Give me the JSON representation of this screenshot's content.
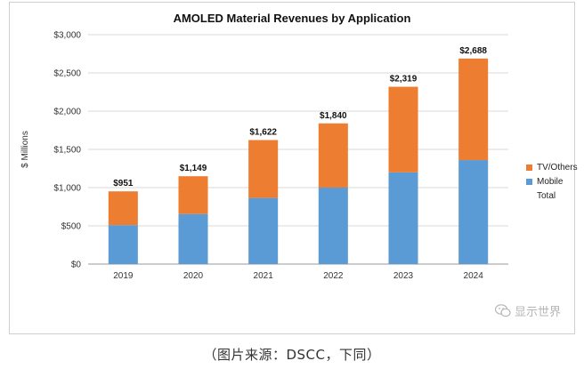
{
  "chart_data": {
    "type": "bar",
    "stacked": true,
    "title": "AMOLED Material Revenues by Application",
    "ylabel": "$ Millions",
    "xlabel": "",
    "categories": [
      "2019",
      "2020",
      "2021",
      "2022",
      "2023",
      "2024"
    ],
    "series": [
      {
        "name": "Mobile",
        "color": "#5b9bd5",
        "values": [
          510,
          655,
          865,
          1000,
          1200,
          1360
        ]
      },
      {
        "name": "TV/Others",
        "color": "#ed7d31",
        "values": [
          441,
          494,
          757,
          840,
          1119,
          1328
        ]
      }
    ],
    "totals_name": "Total",
    "totals_labels": [
      "$951",
      "$1,149",
      "$1,622",
      "$1,840",
      "$2,319",
      "$2,688"
    ],
    "ylim": [
      0,
      3000
    ],
    "yticks": [
      0,
      500,
      1000,
      1500,
      2000,
      2500,
      3000
    ],
    "ytick_labels": [
      "$0",
      "$500",
      "$1,000",
      "$1,500",
      "$2,000",
      "$2,500",
      "$3,000"
    ],
    "legend": [
      "TV/Others",
      "Mobile",
      "Total"
    ],
    "legend_position": "right",
    "grid": true
  },
  "watermark": "显示世界",
  "caption": "（图片来源：DSCC，下同）"
}
